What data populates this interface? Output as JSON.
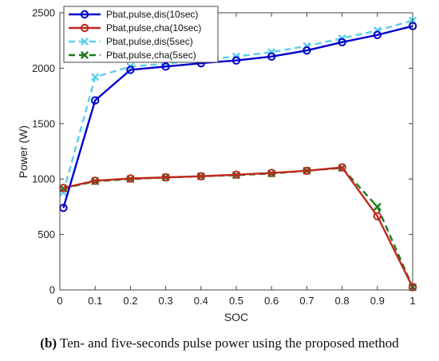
{
  "chart_data": {
    "type": "line",
    "title": "",
    "xlabel": "SOC",
    "ylabel": "Power (W)",
    "xlim": [
      0,
      1
    ],
    "ylim": [
      0,
      2500
    ],
    "x_ticks": [
      "0",
      "0.1",
      "0.2",
      "0.3",
      "0.4",
      "0.5",
      "0.6",
      "0.7",
      "0.8",
      "0.9",
      "1"
    ],
    "y_ticks": [
      "0",
      "500",
      "1000",
      "1500",
      "2000",
      "2500"
    ],
    "grid": false,
    "legend_position": "top-left",
    "x": [
      0.01,
      0.1,
      0.2,
      0.3,
      0.4,
      0.5,
      0.6,
      0.7,
      0.8,
      0.9,
      1.0
    ],
    "series": [
      {
        "name": "Pbat,pulse,dis(10sec)",
        "color": "#0000cc",
        "line_style": "solid",
        "marker": "circle",
        "values": [
          740,
          1710,
          1985,
          2015,
          2045,
          2070,
          2105,
          2160,
          2235,
          2300,
          2380
        ]
      },
      {
        "name": "Pbat,pulse,cha(10sec)",
        "color": "#c0281e",
        "line_style": "solid",
        "marker": "circle",
        "values": [
          920,
          985,
          1005,
          1015,
          1025,
          1040,
          1055,
          1075,
          1105,
          665,
          25
        ]
      },
      {
        "name": "Pbat,pulse,dis(5sec)",
        "color": "#5ad0ee",
        "line_style": "dashed",
        "marker": "x",
        "values": [
          880,
          1920,
          2015,
          2040,
          2075,
          2105,
          2145,
          2200,
          2270,
          2340,
          2430
        ]
      },
      {
        "name": "Pbat,pulse,cha(5sec)",
        "color": "#1e7a1e",
        "line_style": "dashed",
        "marker": "x",
        "values": [
          915,
          980,
          1000,
          1015,
          1025,
          1035,
          1050,
          1075,
          1100,
          750,
          25
        ]
      }
    ]
  },
  "caption": {
    "label": "(b)",
    "text": " Ten- and five-seconds pulse power using the proposed method"
  }
}
